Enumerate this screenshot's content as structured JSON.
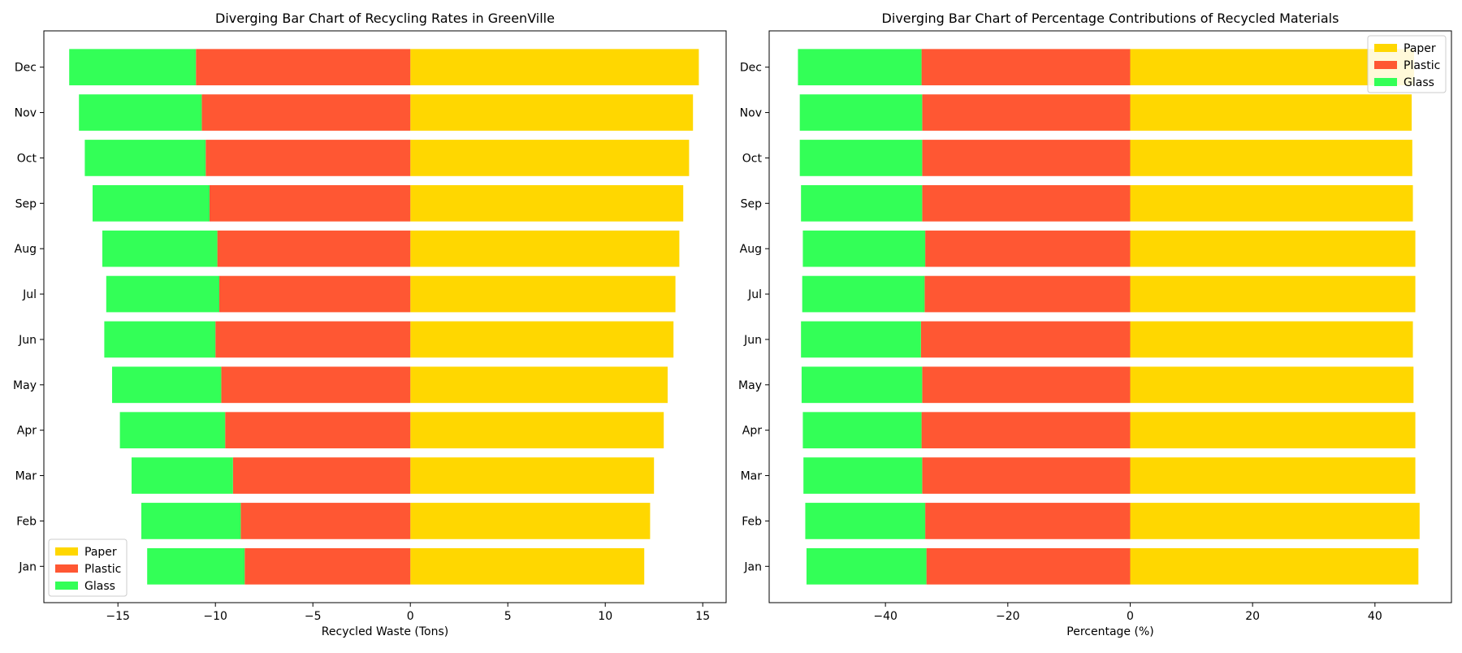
{
  "chart_data": [
    {
      "type": "bar",
      "orientation": "horizontal-diverging",
      "title": "Diverging Bar Chart of Recycling Rates in GreenVille",
      "xlabel": "Recycled Waste (Tons)",
      "ylabel": "",
      "xlim": [
        -18.8,
        16.2
      ],
      "xticks": [
        -15,
        -10,
        -5,
        0,
        5,
        10,
        15
      ],
      "xtick_labels": [
        "−15",
        "−10",
        "−5",
        "0",
        "5",
        "10",
        "15"
      ],
      "categories": [
        "Jan",
        "Feb",
        "Mar",
        "Apr",
        "May",
        "Jun",
        "Jul",
        "Aug",
        "Sep",
        "Oct",
        "Nov",
        "Dec"
      ],
      "series": [
        {
          "name": "Paper",
          "color": "#FFD700",
          "direction": "positive",
          "values": [
            12.0,
            12.3,
            12.5,
            13.0,
            13.2,
            13.5,
            13.6,
            13.8,
            14.0,
            14.3,
            14.5,
            14.8
          ]
        },
        {
          "name": "Plastic",
          "color": "#FF5733",
          "direction": "negative",
          "values": [
            8.5,
            8.7,
            9.1,
            9.5,
            9.7,
            10.0,
            9.8,
            9.9,
            10.3,
            10.5,
            10.7,
            11.0
          ]
        },
        {
          "name": "Glass",
          "color": "#33FF57",
          "direction": "negative-stacked",
          "values": [
            5.0,
            5.1,
            5.2,
            5.4,
            5.6,
            5.7,
            5.8,
            5.9,
            6.0,
            6.2,
            6.3,
            6.5
          ]
        }
      ],
      "legend": {
        "position": "lower-left",
        "entries": [
          "Paper",
          "Plastic",
          "Glass"
        ]
      }
    },
    {
      "type": "bar",
      "orientation": "horizontal-diverging",
      "title": "Diverging Bar Chart of Percentage Contributions of Recycled Materials",
      "xlabel": "Percentage (%)",
      "ylabel": "",
      "xlim": [
        -59,
        52.5
      ],
      "xticks": [
        -40,
        -20,
        0,
        20,
        40
      ],
      "xtick_labels": [
        "−40",
        "−20",
        "0",
        "20",
        "40"
      ],
      "categories": [
        "Jan",
        "Feb",
        "Mar",
        "Apr",
        "May",
        "Jun",
        "Jul",
        "Aug",
        "Sep",
        "Oct",
        "Nov",
        "Dec"
      ],
      "series": [
        {
          "name": "Paper",
          "color": "#FFD700",
          "direction": "positive",
          "values": [
            47.1,
            47.3,
            46.6,
            46.6,
            46.3,
            46.2,
            46.6,
            46.6,
            46.2,
            46.1,
            46.0,
            46.4
          ]
        },
        {
          "name": "Plastic",
          "color": "#FF5733",
          "direction": "negative",
          "values": [
            33.3,
            33.5,
            34.0,
            34.1,
            34.0,
            34.2,
            33.6,
            33.5,
            34.0,
            34.0,
            34.0,
            34.1
          ]
        },
        {
          "name": "Glass",
          "color": "#33FF57",
          "direction": "negative-stacked",
          "values": [
            19.6,
            19.6,
            19.4,
            19.4,
            19.7,
            19.6,
            20.0,
            20.0,
            19.8,
            20.0,
            20.0,
            20.2
          ]
        }
      ],
      "legend": {
        "position": "upper-right",
        "entries": [
          "Paper",
          "Plastic",
          "Glass"
        ]
      }
    }
  ]
}
